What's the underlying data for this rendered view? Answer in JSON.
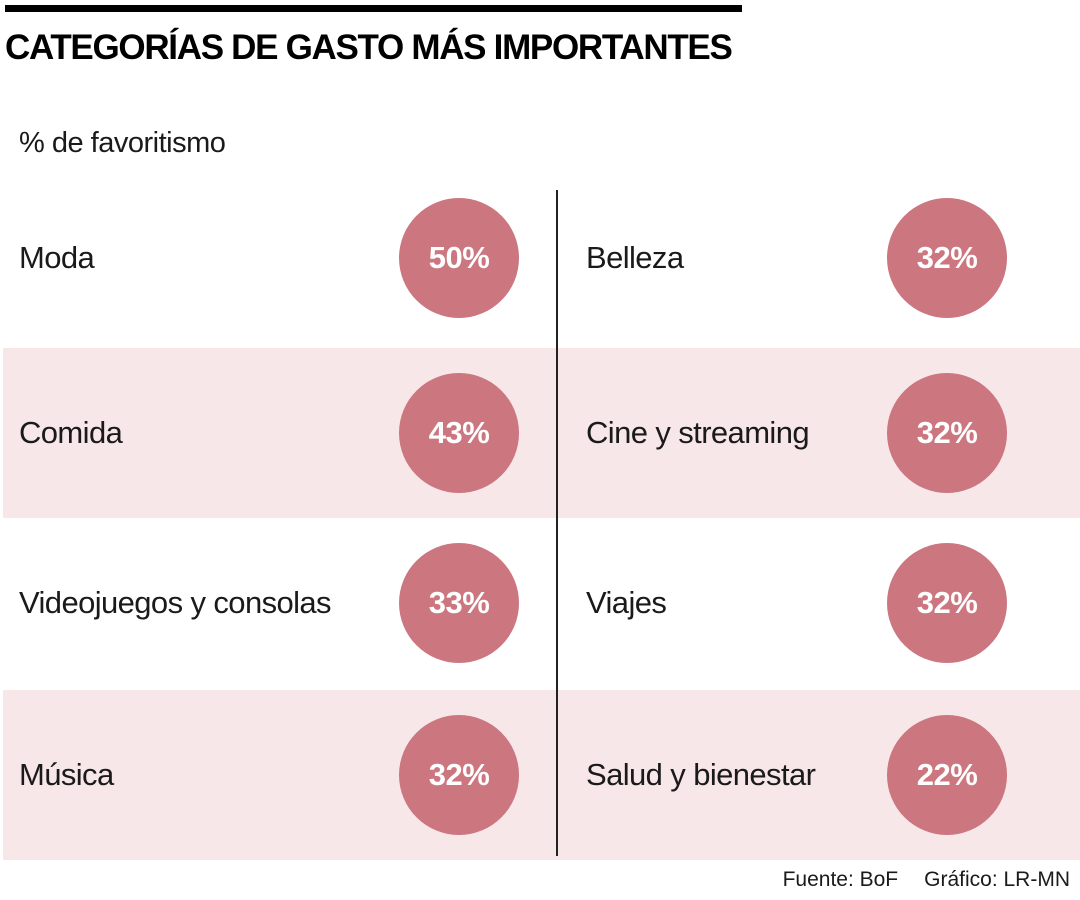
{
  "title": "CATEGORÍAS DE GASTO MÁS IMPORTANTES",
  "subtitle": "% de favoritismo",
  "footer": {
    "source": "Fuente: BoF",
    "credit": "Gráfico: LR-MN"
  },
  "colors": {
    "bubble": "#cc7680",
    "band": "#f7e7e8",
    "rule": "#000000"
  },
  "chart_data": {
    "type": "table",
    "title": "CATEGORÍAS DE GASTO MÁS IMPORTANTES",
    "subtitle": "% de favoritismo",
    "unit": "%",
    "columns": [
      [
        {
          "label": "Moda",
          "value": 50,
          "display": "50%"
        },
        {
          "label": "Comida",
          "value": 43,
          "display": "43%"
        },
        {
          "label": "Videojuegos y consolas",
          "value": 33,
          "display": "33%"
        },
        {
          "label": "Música",
          "value": 32,
          "display": "32%"
        }
      ],
      [
        {
          "label": "Belleza",
          "value": 32,
          "display": "32%"
        },
        {
          "label": "Cine y streaming",
          "value": 32,
          "display": "32%"
        },
        {
          "label": "Viajes",
          "value": 32,
          "display": "32%"
        },
        {
          "label": "Salud y bienestar",
          "value": 22,
          "display": "22%"
        }
      ]
    ],
    "shaded_rows": [
      1,
      3
    ]
  }
}
